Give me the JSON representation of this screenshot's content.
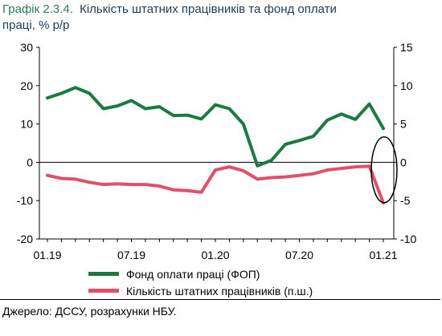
{
  "title": {
    "label": "Графік 2.3.4.",
    "text": "Кількість штатних працівників та фонд оплати",
    "subtitle": "праці, % р/р"
  },
  "source": "Джерело: ДССУ, розрахунки НБУ.",
  "chart_data": {
    "type": "line",
    "x": [
      "01.19",
      "02.19",
      "03.19",
      "04.19",
      "05.19",
      "06.19",
      "07.19",
      "08.19",
      "09.19",
      "10.19",
      "11.19",
      "12.19",
      "01.20",
      "02.20",
      "03.20",
      "04.20",
      "05.20",
      "06.20",
      "07.20",
      "08.20",
      "09.20",
      "10.20",
      "11.20",
      "12.20",
      "01.21"
    ],
    "xtick_labels": [
      "01.19",
      "07.19",
      "01.20",
      "07.20",
      "01.21"
    ],
    "left_axis": {
      "ylim": [
        -20,
        30
      ],
      "ticks": [
        "30",
        "20",
        "10",
        "0",
        "-10",
        "-20"
      ]
    },
    "right_axis": {
      "ylim": [
        -10,
        15
      ],
      "ticks": [
        "15",
        "10",
        "5",
        "0",
        "-5",
        "-10"
      ]
    },
    "grid": false,
    "legend_position": "bottom",
    "series": [
      {
        "name": "Фонд оплати праці (ФОП)",
        "axis": "left",
        "color": "#1b7a3e",
        "values": [
          16.8,
          18.0,
          19.5,
          18.0,
          14.0,
          14.7,
          16.1,
          14.0,
          14.5,
          12.2,
          12.3,
          11.3,
          15.0,
          14.0,
          10.0,
          -0.9,
          0.5,
          4.7,
          5.7,
          6.8,
          11.0,
          12.6,
          11.2,
          15.2,
          8.8
        ]
      },
      {
        "name": "Кількість штатних працівників (п.ш.)",
        "axis": "right",
        "color": "#e0506a",
        "values": [
          -1.7,
          -2.1,
          -2.2,
          -2.6,
          -2.9,
          -2.8,
          -2.9,
          -2.9,
          -3.1,
          -3.6,
          -3.7,
          -3.9,
          -1.0,
          -0.6,
          -1.1,
          -2.2,
          -2.0,
          -1.9,
          -1.7,
          -1.5,
          -1.0,
          -0.8,
          -0.6,
          -0.5,
          -5.3
        ]
      }
    ]
  },
  "annotation": {
    "type": "ellipse",
    "color": "#000000"
  }
}
